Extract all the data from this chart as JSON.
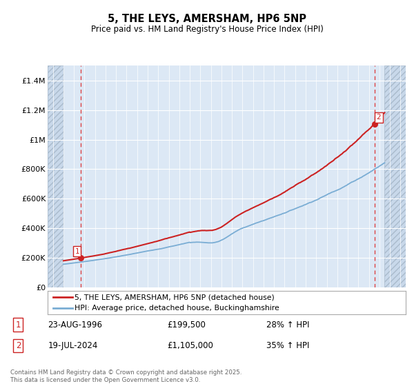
{
  "title_line1": "5, THE LEYS, AMERSHAM, HP6 5NP",
  "title_line2": "Price paid vs. HM Land Registry's House Price Index (HPI)",
  "ylim": [
    0,
    1500000
  ],
  "yticks": [
    0,
    200000,
    400000,
    600000,
    800000,
    1000000,
    1200000,
    1400000
  ],
  "ytick_labels": [
    "£0",
    "£200K",
    "£400K",
    "£600K",
    "£800K",
    "£1M",
    "£1.2M",
    "£1.4M"
  ],
  "sale1_date_num": 1996.647,
  "sale1_price": 199500,
  "sale1_label": "1",
  "sale2_date_num": 2024.547,
  "sale2_price": 1105000,
  "sale2_label": "2",
  "vline1_x": 1996.647,
  "vline2_x": 2024.547,
  "hpi_line_color": "#7aadd4",
  "price_line_color": "#cc2222",
  "vline_color": "#dd4444",
  "legend_label1": "5, THE LEYS, AMERSHAM, HP6 5NP (detached house)",
  "legend_label2": "HPI: Average price, detached house, Buckinghamshire",
  "annotation1_box_label": "1",
  "annotation1_date": "23-AUG-1996",
  "annotation1_price": "£199,500",
  "annotation1_hpi": "28% ↑ HPI",
  "annotation2_box_label": "2",
  "annotation2_date": "19-JUL-2024",
  "annotation2_price": "£1,105,000",
  "annotation2_hpi": "35% ↑ HPI",
  "footer": "Contains HM Land Registry data © Crown copyright and database right 2025.\nThis data is licensed under the Open Government Licence v3.0.",
  "bg_color": "#ffffff",
  "plot_bg_color": "#dce8f5",
  "hatch_region_color": "#c8d8ea",
  "grid_color": "#ffffff",
  "xmin": 1993.5,
  "xmax": 2027.5,
  "data_xstart": 1995.0,
  "data_xend": 2025.5,
  "xticks": [
    1994,
    1995,
    1996,
    1997,
    1998,
    1999,
    2000,
    2001,
    2002,
    2003,
    2004,
    2005,
    2006,
    2007,
    2008,
    2009,
    2010,
    2011,
    2012,
    2013,
    2014,
    2015,
    2016,
    2017,
    2018,
    2019,
    2020,
    2021,
    2022,
    2023,
    2024,
    2025,
    2026,
    2027
  ]
}
